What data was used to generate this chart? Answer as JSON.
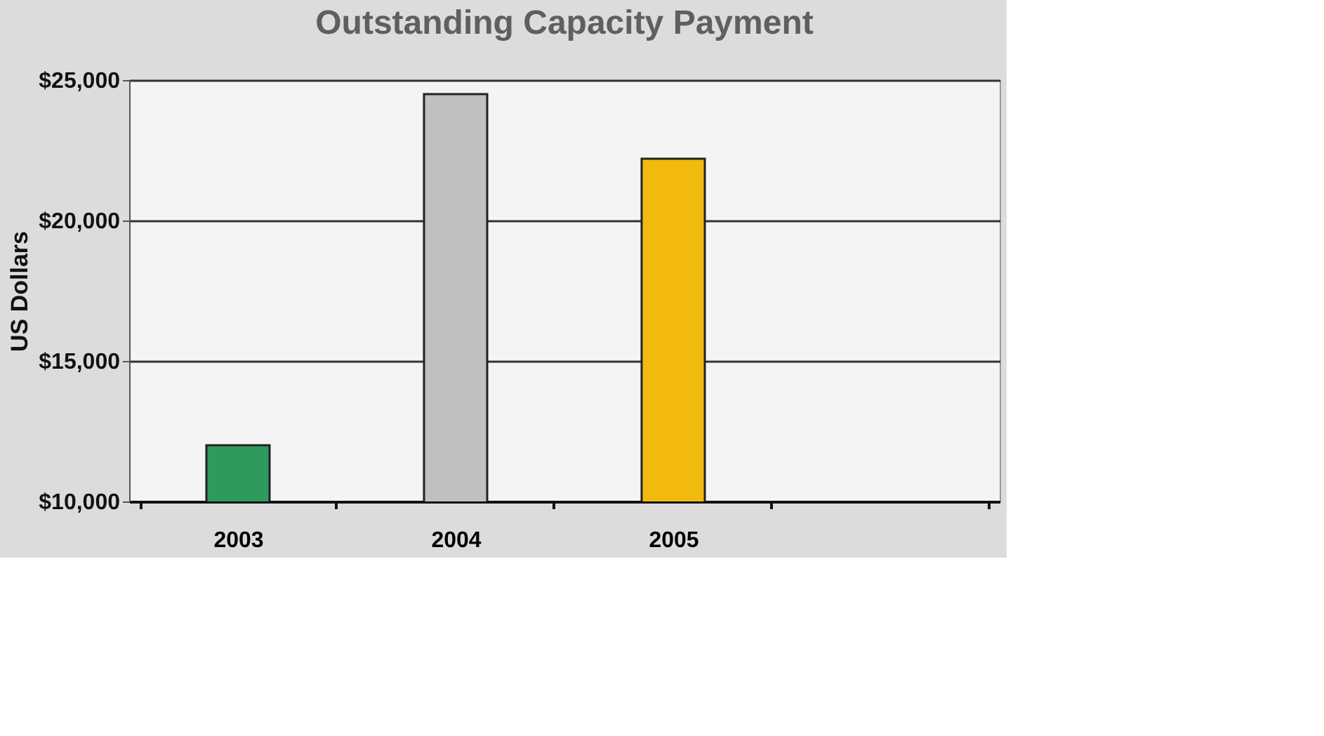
{
  "chart_data": {
    "type": "bar",
    "title": "Outstanding Capacity Payment",
    "ylabel": "US Dollars",
    "categories": [
      "2003",
      "2004",
      "2005",
      null
    ],
    "values": [
      12000,
      24500,
      22200,
      null
    ],
    "colors": [
      "#2e9a5e",
      "#c0c0c0",
      "#f2b90f",
      "#ffffff"
    ],
    "ylim": [
      10000,
      25000
    ],
    "yticks": [
      {
        "value": 10000,
        "label": "$10,000"
      },
      {
        "value": 15000,
        "label": "$15,000"
      },
      {
        "value": 20000,
        "label": "$20,000"
      },
      {
        "value": 25000,
        "label": "$25,000"
      }
    ],
    "grid": "y"
  }
}
